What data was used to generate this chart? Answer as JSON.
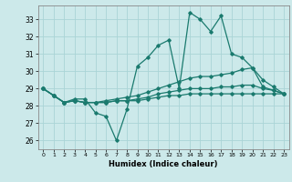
{
  "xlabel": "Humidex (Indice chaleur)",
  "bg_color": "#cce9ea",
  "grid_color": "#aad4d6",
  "line_color": "#1a7a6e",
  "x_ticks": [
    0,
    1,
    2,
    3,
    4,
    5,
    6,
    7,
    8,
    9,
    10,
    11,
    12,
    13,
    14,
    15,
    16,
    17,
    18,
    19,
    20,
    21,
    22,
    23
  ],
  "ylim": [
    25.5,
    33.8
  ],
  "xlim": [
    -0.5,
    23.5
  ],
  "yticks": [
    26,
    27,
    28,
    29,
    30,
    31,
    32,
    33
  ],
  "line1": [
    29.0,
    28.6,
    28.2,
    28.4,
    28.4,
    27.6,
    27.4,
    26.0,
    27.8,
    30.3,
    30.8,
    31.5,
    31.8,
    29.0,
    33.4,
    33.0,
    32.3,
    33.2,
    31.0,
    30.8,
    30.2,
    29.1,
    28.9,
    28.7
  ],
  "line2": [
    29.0,
    28.6,
    28.2,
    28.3,
    28.2,
    28.2,
    28.3,
    28.4,
    28.5,
    28.6,
    28.8,
    29.0,
    29.2,
    29.4,
    29.6,
    29.7,
    29.7,
    29.8,
    29.9,
    30.1,
    30.2,
    29.5,
    29.1,
    28.7
  ],
  "line3": [
    29.0,
    28.6,
    28.2,
    28.3,
    28.2,
    28.2,
    28.2,
    28.3,
    28.3,
    28.4,
    28.5,
    28.7,
    28.8,
    28.9,
    29.0,
    29.0,
    29.0,
    29.1,
    29.1,
    29.2,
    29.2,
    29.0,
    28.9,
    28.7
  ],
  "line4": [
    29.0,
    28.6,
    28.2,
    28.3,
    28.2,
    28.2,
    28.2,
    28.3,
    28.3,
    28.3,
    28.4,
    28.5,
    28.6,
    28.6,
    28.7,
    28.7,
    28.7,
    28.7,
    28.7,
    28.7,
    28.7,
    28.7,
    28.7,
    28.7
  ]
}
